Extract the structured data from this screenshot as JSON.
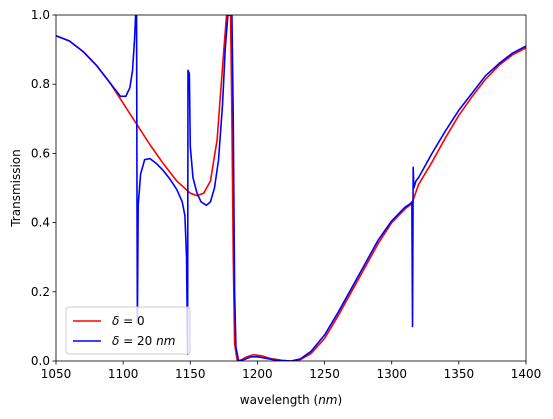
{
  "chart_data": {
    "type": "line",
    "title": "",
    "xlabel": {
      "prefix": "wavelength (",
      "unit": "nm",
      "suffix": ")"
    },
    "ylabel": "Transmission",
    "xlim": [
      1050,
      1400
    ],
    "ylim": [
      0,
      1.0
    ],
    "xticks": [
      1050,
      1100,
      1150,
      1200,
      1250,
      1300,
      1350,
      1400
    ],
    "yticks": [
      0.0,
      0.2,
      0.4,
      0.6,
      0.8,
      1.0
    ],
    "xtick_labels": [
      "1050",
      "1100",
      "1150",
      "1200",
      "1250",
      "1300",
      "1350",
      "1400"
    ],
    "ytick_labels": [
      "0.0",
      "0.2",
      "0.4",
      "0.6",
      "0.8",
      "1.0"
    ],
    "grid": false,
    "legend_position": "lower-left",
    "series": [
      {
        "name": "δ = 0",
        "legend": {
          "symbol": "δ",
          "rest": " = 0"
        },
        "color": "#ff0000",
        "points": [
          [
            1050,
            0.94
          ],
          [
            1060,
            0.925
          ],
          [
            1070,
            0.895
          ],
          [
            1080,
            0.855
          ],
          [
            1090,
            0.805
          ],
          [
            1100,
            0.745
          ],
          [
            1110,
            0.685
          ],
          [
            1120,
            0.625
          ],
          [
            1130,
            0.57
          ],
          [
            1140,
            0.52
          ],
          [
            1150,
            0.485
          ],
          [
            1155,
            0.478
          ],
          [
            1160,
            0.485
          ],
          [
            1165,
            0.52
          ],
          [
            1170,
            0.64
          ],
          [
            1174,
            0.85
          ],
          [
            1177,
            1.0
          ],
          [
            1180,
            1.0
          ],
          [
            1181,
            0.7
          ],
          [
            1182,
            0.3
          ],
          [
            1183,
            0.05
          ],
          [
            1185,
            0.0
          ],
          [
            1188,
            0.003
          ],
          [
            1192,
            0.012
          ],
          [
            1197,
            0.018
          ],
          [
            1203,
            0.015
          ],
          [
            1210,
            0.007
          ],
          [
            1218,
            0.002
          ],
          [
            1225,
            0.0
          ],
          [
            1232,
            0.004
          ],
          [
            1240,
            0.022
          ],
          [
            1250,
            0.065
          ],
          [
            1260,
            0.13
          ],
          [
            1270,
            0.2
          ],
          [
            1280,
            0.27
          ],
          [
            1290,
            0.34
          ],
          [
            1300,
            0.4
          ],
          [
            1310,
            0.44
          ],
          [
            1315,
            0.455
          ],
          [
            1320,
            0.51
          ],
          [
            1330,
            0.575
          ],
          [
            1340,
            0.645
          ],
          [
            1350,
            0.71
          ],
          [
            1360,
            0.765
          ],
          [
            1370,
            0.815
          ],
          [
            1380,
            0.855
          ],
          [
            1390,
            0.885
          ],
          [
            1400,
            0.905
          ]
        ]
      },
      {
        "name": "δ = 20 nm",
        "legend": {
          "symbol": "δ",
          "rest": " = 20 ",
          "unit": "nm"
        },
        "color": "#0000ff",
        "points": [
          [
            1050,
            0.94
          ],
          [
            1060,
            0.925
          ],
          [
            1070,
            0.895
          ],
          [
            1080,
            0.855
          ],
          [
            1090,
            0.805
          ],
          [
            1098,
            0.765
          ],
          [
            1102,
            0.765
          ],
          [
            1105,
            0.79
          ],
          [
            1107,
            0.84
          ],
          [
            1108.5,
            0.93
          ],
          [
            1109.3,
            1.0
          ],
          [
            1110,
            1.0
          ],
          [
            1110.3,
            0.5
          ],
          [
            1110.6,
            0.11
          ],
          [
            1111.2,
            0.45
          ],
          [
            1113,
            0.54
          ],
          [
            1116,
            0.582
          ],
          [
            1120,
            0.585
          ],
          [
            1125,
            0.57
          ],
          [
            1130,
            0.55
          ],
          [
            1135,
            0.525
          ],
          [
            1140,
            0.495
          ],
          [
            1144,
            0.46
          ],
          [
            1146,
            0.42
          ],
          [
            1147.2,
            0.3
          ],
          [
            1148,
            0.02
          ],
          [
            1148.3,
            0.84
          ],
          [
            1149.3,
            0.83
          ],
          [
            1150,
            0.62
          ],
          [
            1152,
            0.53
          ],
          [
            1155,
            0.485
          ],
          [
            1158,
            0.46
          ],
          [
            1162,
            0.45
          ],
          [
            1165,
            0.46
          ],
          [
            1168,
            0.5
          ],
          [
            1171,
            0.58
          ],
          [
            1174,
            0.74
          ],
          [
            1176,
            0.9
          ],
          [
            1178,
            1.0
          ],
          [
            1181,
            1.0
          ],
          [
            1182,
            0.7
          ],
          [
            1183,
            0.2
          ],
          [
            1184,
            0.04
          ],
          [
            1186,
            0.0
          ],
          [
            1190,
            0.004
          ],
          [
            1195,
            0.012
          ],
          [
            1200,
            0.012
          ],
          [
            1206,
            0.008
          ],
          [
            1214,
            0.002
          ],
          [
            1225,
            0.0
          ],
          [
            1232,
            0.006
          ],
          [
            1240,
            0.028
          ],
          [
            1250,
            0.075
          ],
          [
            1260,
            0.14
          ],
          [
            1270,
            0.21
          ],
          [
            1280,
            0.28
          ],
          [
            1290,
            0.35
          ],
          [
            1300,
            0.405
          ],
          [
            1310,
            0.445
          ],
          [
            1314,
            0.455
          ],
          [
            1315,
            0.46
          ],
          [
            1315.5,
            0.1
          ],
          [
            1316,
            0.56
          ],
          [
            1316.5,
            0.5
          ],
          [
            1318,
            0.52
          ],
          [
            1320,
            0.53
          ],
          [
            1330,
            0.6
          ],
          [
            1340,
            0.665
          ],
          [
            1350,
            0.725
          ],
          [
            1360,
            0.775
          ],
          [
            1370,
            0.825
          ],
          [
            1380,
            0.86
          ],
          [
            1390,
            0.89
          ],
          [
            1400,
            0.91
          ]
        ]
      }
    ]
  }
}
